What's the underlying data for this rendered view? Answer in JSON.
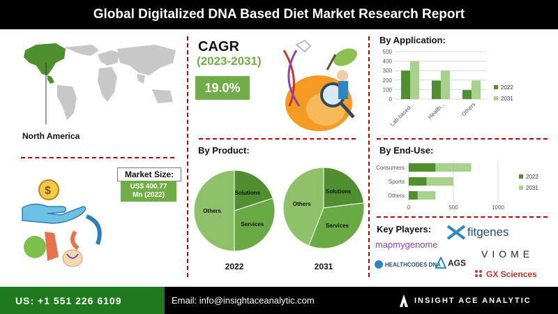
{
  "title": "Global  Digitalized DNA Based Diet Market Research Report",
  "region": {
    "label": "North America"
  },
  "cagr": {
    "title": "CAGR",
    "period": "(2023-2031)",
    "value": "19.0%"
  },
  "market_size": {
    "label": "Market Size:",
    "value_line1": "US$ 400.77",
    "value_line2": "Mn (2022)"
  },
  "sections": {
    "by_product": "By Product:",
    "by_application": "By Application:",
    "by_end_use": "By  End-Use:",
    "key_players": "Key Players:"
  },
  "players": [
    "fitgenes",
    "mapmygenome",
    "VIOME",
    "HEALTHCODES DNA",
    "AGS",
    "GX Sciences"
  ],
  "footer": {
    "phone": "US: +1 551 226 6109",
    "email": "Email: info@insightaceanalytic.com",
    "brand": "INSIGHT ACE ANALYTIC"
  },
  "colors": {
    "dark_green": "#4f8f2f",
    "light_green": "#a9d18e",
    "accent": "#70ad47",
    "divider": "#b00000"
  },
  "icons": [
    "world-map-icon",
    "dna-apple-icon",
    "money-hand-icon",
    "health-cycle-icon",
    "insight-logo-icon"
  ],
  "chart_data": [
    {
      "type": "bar",
      "title": "By Application:",
      "categories": [
        "Lab-based...",
        "Health...",
        "Others"
      ],
      "series": [
        {
          "name": "2022",
          "values": [
            300,
            195,
            95
          ]
        },
        {
          "name": "2031",
          "values": [
            400,
            300,
            195
          ]
        }
      ],
      "ylim": [
        0,
        500
      ],
      "yticks": [
        0,
        100,
        200,
        300,
        400,
        500
      ],
      "grid": true,
      "legend": "right"
    },
    {
      "type": "bar",
      "orientation": "horizontal",
      "title": "By  End-Use:",
      "categories": [
        "Consumers",
        "Sports",
        "Others"
      ],
      "series": [
        {
          "name": "2022",
          "values": [
            300,
            200,
            100
          ]
        },
        {
          "name": "2031",
          "values": [
            400,
            300,
            200
          ]
        }
      ],
      "xlim": [
        0,
        1000
      ],
      "xticks": [
        0,
        500,
        1000
      ],
      "stacked": true,
      "grid": true,
      "legend": "right"
    },
    {
      "type": "pie",
      "title": "2022",
      "labels": [
        "Solutions",
        "Services",
        "Others"
      ],
      "values": [
        20,
        30,
        50
      ]
    },
    {
      "type": "pie",
      "title": "2031",
      "labels": [
        "Solutions",
        "Services",
        "Others"
      ],
      "values": [
        23,
        33,
        44
      ]
    }
  ]
}
